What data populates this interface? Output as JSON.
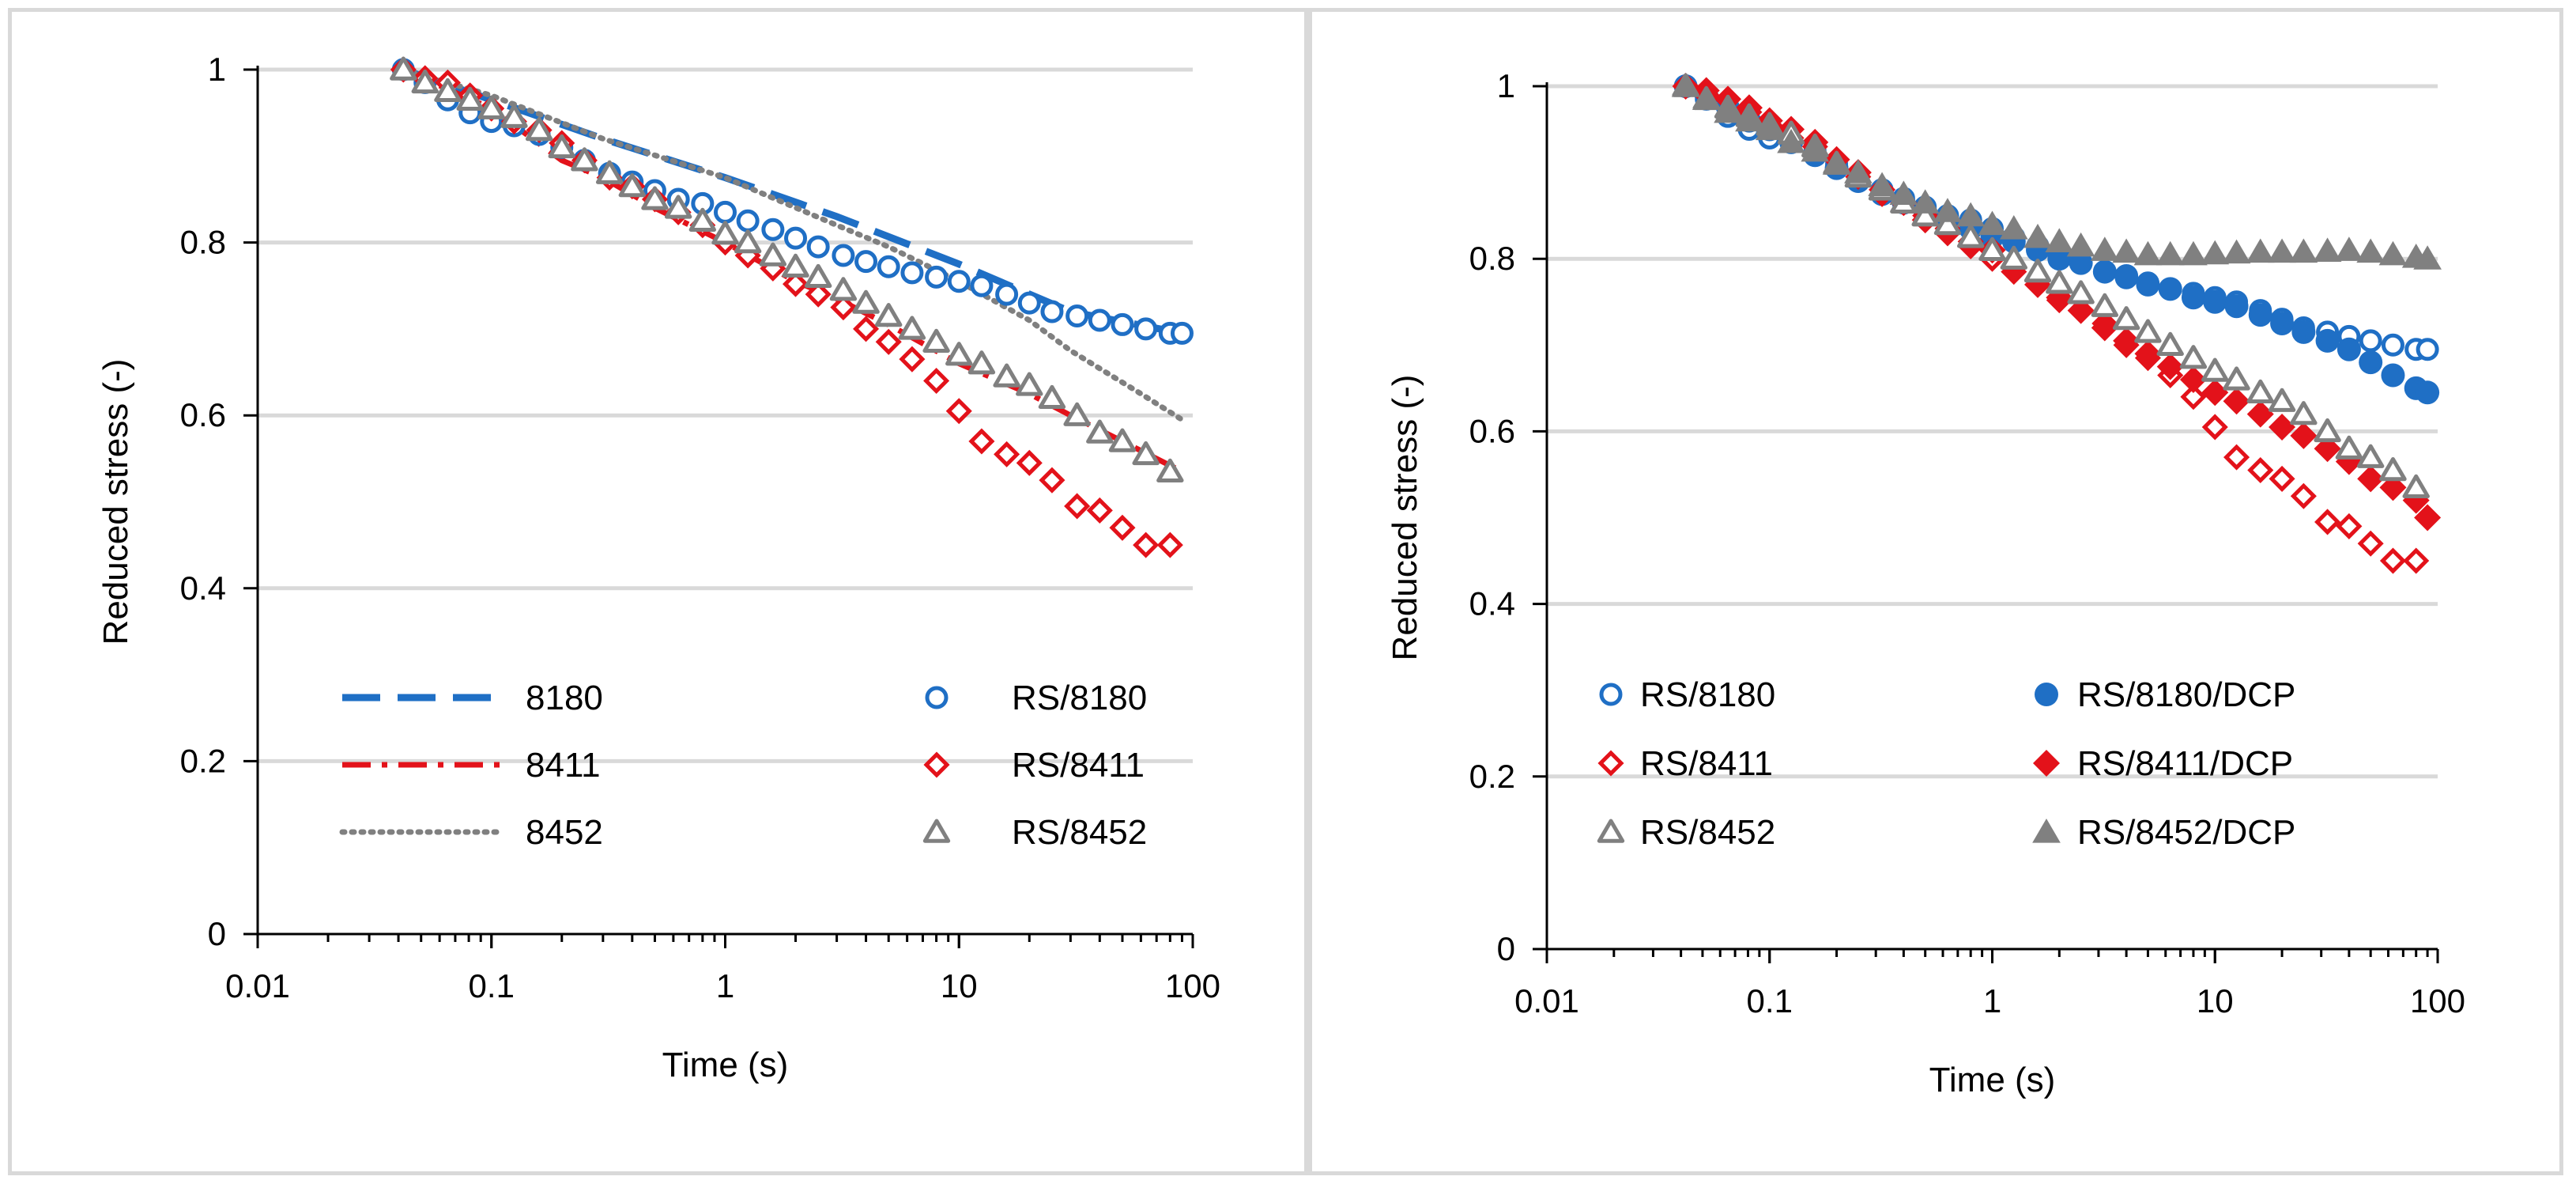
{
  "chart_data": [
    {
      "type": "scatter",
      "panel": "left",
      "xscale": "log",
      "xlim": [
        0.01,
        100
      ],
      "ylim": [
        0,
        1
      ],
      "xticks": [
        "0.01",
        "0.1",
        "1",
        "10",
        "100"
      ],
      "yticks": [
        "0",
        "0.2",
        "0.4",
        "0.6",
        "0.8",
        "1"
      ],
      "xlabel": "Time (s)",
      "ylabel": "Reduced stress (-)",
      "grid": "horizontal",
      "series": [
        {
          "name": "8180",
          "style": "dash",
          "color": "#1f6fc5",
          "x": [
            0.042,
            0.1,
            0.3,
            1,
            3,
            10,
            30,
            90
          ],
          "y": [
            1.0,
            0.965,
            0.92,
            0.875,
            0.83,
            0.775,
            0.72,
            0.695
          ]
        },
        {
          "name": "8411",
          "style": "dashdot",
          "color": "#e3121a",
          "x": [
            0.042,
            0.1,
            0.2,
            0.3,
            0.5,
            1,
            2,
            3,
            5,
            10,
            20,
            30,
            50,
            90
          ],
          "y": [
            1.0,
            0.955,
            0.895,
            0.875,
            0.84,
            0.8,
            0.755,
            0.735,
            0.705,
            0.66,
            0.625,
            0.6,
            0.57,
            0.535
          ]
        },
        {
          "name": "8452",
          "style": "dot",
          "color": "#808080",
          "x": [
            0.042,
            0.1,
            0.3,
            1,
            3,
            5,
            10,
            20,
            30,
            60,
            90
          ],
          "y": [
            1.0,
            0.97,
            0.92,
            0.875,
            0.82,
            0.795,
            0.755,
            0.71,
            0.675,
            0.625,
            0.595
          ]
        },
        {
          "name": "RS/8180",
          "marker": "circle-open",
          "color": "#1f6fc5",
          "x": [
            0.042,
            0.052,
            0.065,
            0.081,
            0.1,
            0.125,
            0.16,
            0.2,
            0.25,
            0.32,
            0.4,
            0.5,
            0.63,
            0.8,
            1.0,
            1.25,
            1.6,
            2.0,
            2.5,
            3.2,
            4.0,
            5.0,
            6.3,
            8.0,
            10,
            12.5,
            16,
            20,
            25,
            32,
            40,
            50,
            63,
            80,
            90
          ],
          "y": [
            1.0,
            0.985,
            0.965,
            0.95,
            0.94,
            0.935,
            0.925,
            0.91,
            0.895,
            0.88,
            0.87,
            0.86,
            0.85,
            0.845,
            0.835,
            0.825,
            0.815,
            0.805,
            0.795,
            0.785,
            0.778,
            0.772,
            0.765,
            0.76,
            0.755,
            0.75,
            0.74,
            0.73,
            0.72,
            0.715,
            0.71,
            0.705,
            0.7,
            0.695,
            0.695
          ]
        },
        {
          "name": "RS/8411",
          "marker": "diamond-open",
          "color": "#e3121a",
          "x": [
            0.042,
            0.052,
            0.065,
            0.081,
            0.1,
            0.125,
            0.16,
            0.2,
            0.25,
            0.32,
            0.4,
            0.5,
            0.63,
            0.8,
            1.0,
            1.25,
            1.6,
            2.0,
            2.5,
            3.2,
            4.0,
            5.0,
            6.3,
            8.0,
            10,
            12.5,
            16,
            20,
            25,
            32,
            40,
            50,
            63,
            80
          ],
          "y": [
            1.0,
            0.99,
            0.985,
            0.97,
            0.955,
            0.94,
            0.93,
            0.915,
            0.895,
            0.875,
            0.865,
            0.85,
            0.835,
            0.82,
            0.8,
            0.785,
            0.77,
            0.752,
            0.74,
            0.725,
            0.7,
            0.685,
            0.665,
            0.64,
            0.605,
            0.57,
            0.555,
            0.545,
            0.525,
            0.495,
            0.49,
            0.47,
            0.45,
            0.45
          ]
        },
        {
          "name": "RS/8452",
          "marker": "triangle-open",
          "color": "#808080",
          "x": [
            0.042,
            0.052,
            0.065,
            0.081,
            0.1,
            0.125,
            0.16,
            0.2,
            0.25,
            0.32,
            0.4,
            0.5,
            0.63,
            0.8,
            1.0,
            1.25,
            1.6,
            2.0,
            2.5,
            3.2,
            4.0,
            5.0,
            6.3,
            8.0,
            10,
            12.5,
            16,
            20,
            25,
            32,
            40,
            50,
            63,
            80
          ],
          "y": [
            1.0,
            0.985,
            0.975,
            0.965,
            0.955,
            0.945,
            0.93,
            0.91,
            0.895,
            0.88,
            0.865,
            0.85,
            0.84,
            0.825,
            0.81,
            0.8,
            0.785,
            0.772,
            0.76,
            0.745,
            0.73,
            0.715,
            0.7,
            0.685,
            0.67,
            0.66,
            0.645,
            0.635,
            0.62,
            0.6,
            0.58,
            0.57,
            0.555,
            0.535
          ]
        }
      ],
      "legend": {
        "placement": "lower-middle",
        "columns": 2,
        "entries": [
          "8180",
          "RS/8180",
          "8411",
          "RS/8411",
          "8452",
          "RS/8452"
        ]
      }
    },
    {
      "type": "scatter",
      "panel": "right",
      "xscale": "log",
      "xlim": [
        0.01,
        100
      ],
      "ylim": [
        0,
        1
      ],
      "xticks": [
        "0.01",
        "0.1",
        "1",
        "10",
        "100"
      ],
      "yticks": [
        "0",
        "0.2",
        "0.4",
        "0.6",
        "0.8",
        "1"
      ],
      "xlabel": "Time (s)",
      "ylabel": "Reduced stress (-)",
      "grid": "horizontal",
      "series": [
        {
          "name": "RS/8180",
          "marker": "circle-open",
          "color": "#1f6fc5",
          "x": [
            0.042,
            0.052,
            0.065,
            0.081,
            0.1,
            0.125,
            0.16,
            0.2,
            0.25,
            0.32,
            0.4,
            0.5,
            0.63,
            0.8,
            1.0,
            1.25,
            1.6,
            2.0,
            2.5,
            3.2,
            4.0,
            5.0,
            6.3,
            8.0,
            10,
            12.5,
            16,
            20,
            25,
            32,
            40,
            50,
            63,
            80,
            90
          ],
          "y": [
            1.0,
            0.985,
            0.965,
            0.95,
            0.94,
            0.935,
            0.925,
            0.91,
            0.895,
            0.88,
            0.87,
            0.86,
            0.85,
            0.845,
            0.835,
            0.825,
            0.815,
            0.805,
            0.795,
            0.785,
            0.778,
            0.772,
            0.765,
            0.76,
            0.755,
            0.75,
            0.74,
            0.73,
            0.72,
            0.715,
            0.71,
            0.705,
            0.7,
            0.695,
            0.695
          ]
        },
        {
          "name": "RS/8180/DCP",
          "marker": "circle-filled",
          "color": "#1f6fc5",
          "x": [
            0.042,
            0.052,
            0.065,
            0.081,
            0.1,
            0.125,
            0.16,
            0.2,
            0.25,
            0.32,
            0.4,
            0.5,
            0.63,
            0.8,
            1.0,
            1.25,
            1.6,
            2.0,
            2.5,
            3.2,
            4.0,
            5.0,
            6.3,
            8.0,
            10,
            12.5,
            16,
            20,
            25,
            32,
            40,
            50,
            63,
            80,
            90
          ],
          "y": [
            1.0,
            0.99,
            0.975,
            0.96,
            0.95,
            0.935,
            0.92,
            0.905,
            0.89,
            0.875,
            0.865,
            0.855,
            0.845,
            0.835,
            0.825,
            0.82,
            0.81,
            0.8,
            0.795,
            0.785,
            0.78,
            0.77,
            0.765,
            0.755,
            0.75,
            0.745,
            0.735,
            0.725,
            0.715,
            0.705,
            0.695,
            0.68,
            0.665,
            0.65,
            0.645
          ]
        },
        {
          "name": "RS/8411",
          "marker": "diamond-open",
          "color": "#e3121a",
          "x": [
            0.042,
            0.052,
            0.065,
            0.081,
            0.1,
            0.125,
            0.16,
            0.2,
            0.25,
            0.32,
            0.4,
            0.5,
            0.63,
            0.8,
            1.0,
            1.25,
            1.6,
            2.0,
            2.5,
            3.2,
            4.0,
            5.0,
            6.3,
            8.0,
            10,
            12.5,
            16,
            20,
            25,
            32,
            40,
            50,
            63,
            80
          ],
          "y": [
            1.0,
            0.99,
            0.985,
            0.97,
            0.955,
            0.94,
            0.93,
            0.915,
            0.895,
            0.875,
            0.865,
            0.85,
            0.835,
            0.82,
            0.8,
            0.785,
            0.77,
            0.752,
            0.74,
            0.725,
            0.7,
            0.685,
            0.665,
            0.64,
            0.605,
            0.57,
            0.555,
            0.545,
            0.525,
            0.495,
            0.49,
            0.47,
            0.45,
            0.45
          ]
        },
        {
          "name": "RS/8411/DCP",
          "marker": "diamond-filled",
          "color": "#e3121a",
          "x": [
            0.042,
            0.052,
            0.065,
            0.081,
            0.1,
            0.125,
            0.16,
            0.2,
            0.25,
            0.32,
            0.4,
            0.5,
            0.63,
            0.8,
            1.0,
            1.25,
            1.6,
            2.0,
            2.5,
            3.2,
            4.0,
            5.0,
            6.3,
            8.0,
            10,
            12.5,
            16,
            20,
            25,
            32,
            40,
            50,
            63,
            80,
            90
          ],
          "y": [
            1.0,
            0.995,
            0.985,
            0.975,
            0.96,
            0.95,
            0.935,
            0.915,
            0.9,
            0.88,
            0.865,
            0.845,
            0.83,
            0.815,
            0.81,
            0.79,
            0.77,
            0.755,
            0.74,
            0.72,
            0.705,
            0.69,
            0.675,
            0.66,
            0.645,
            0.635,
            0.62,
            0.605,
            0.595,
            0.58,
            0.565,
            0.545,
            0.535,
            0.52,
            0.5
          ]
        },
        {
          "name": "RS/8452",
          "marker": "triangle-open",
          "color": "#808080",
          "x": [
            0.042,
            0.052,
            0.065,
            0.081,
            0.1,
            0.125,
            0.16,
            0.2,
            0.25,
            0.32,
            0.4,
            0.5,
            0.63,
            0.8,
            1.0,
            1.25,
            1.6,
            2.0,
            2.5,
            3.2,
            4.0,
            5.0,
            6.3,
            8.0,
            10,
            12.5,
            16,
            20,
            25,
            32,
            40,
            50,
            63,
            80
          ],
          "y": [
            1.0,
            0.985,
            0.975,
            0.965,
            0.955,
            0.945,
            0.93,
            0.91,
            0.895,
            0.88,
            0.865,
            0.85,
            0.84,
            0.825,
            0.81,
            0.8,
            0.785,
            0.772,
            0.76,
            0.745,
            0.73,
            0.715,
            0.7,
            0.685,
            0.67,
            0.66,
            0.645,
            0.635,
            0.62,
            0.6,
            0.58,
            0.57,
            0.555,
            0.535
          ]
        },
        {
          "name": "RS/8452/DCP",
          "marker": "triangle-filled",
          "color": "#808080",
          "x": [
            0.042,
            0.052,
            0.065,
            0.081,
            0.1,
            0.125,
            0.16,
            0.2,
            0.25,
            0.32,
            0.4,
            0.5,
            0.63,
            0.8,
            1.0,
            1.25,
            1.6,
            2.0,
            2.5,
            3.2,
            4.0,
            5.0,
            6.3,
            8.0,
            10,
            12.5,
            16,
            20,
            25,
            32,
            40,
            50,
            63,
            80,
            90
          ],
          "y": [
            1.0,
            0.985,
            0.97,
            0.96,
            0.95,
            0.935,
            0.925,
            0.91,
            0.9,
            0.885,
            0.875,
            0.865,
            0.855,
            0.85,
            0.84,
            0.835,
            0.825,
            0.82,
            0.815,
            0.81,
            0.808,
            0.805,
            0.805,
            0.805,
            0.806,
            0.807,
            0.808,
            0.808,
            0.808,
            0.809,
            0.81,
            0.808,
            0.805,
            0.802,
            0.8
          ]
        }
      ],
      "legend": {
        "placement": "lower-middle",
        "columns": 2,
        "entries": [
          "RS/8180",
          "RS/8180/DCP",
          "RS/8411",
          "RS/8411/DCP",
          "RS/8452",
          "RS/8452/DCP"
        ]
      }
    }
  ]
}
